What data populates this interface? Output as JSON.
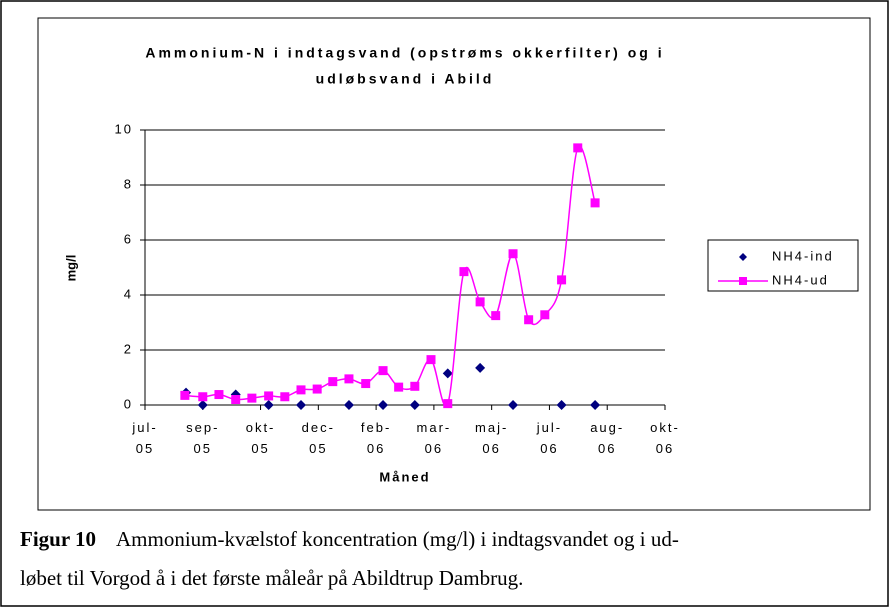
{
  "chart_data": {
    "type": "line",
    "title_lines": [
      "Ammonium-N i indtagsvand (opstrøms okkerfilter) og i",
      "udløbsvand i Abild"
    ],
    "x_label": "Måned",
    "y_label": "mg/l",
    "xlim": [
      0,
      9
    ],
    "xticks": [
      {
        "value": 0,
        "label": "jul-05"
      },
      {
        "value": 1,
        "label": "sep-05"
      },
      {
        "value": 2,
        "label": "okt-05"
      },
      {
        "value": 3,
        "label": "dec-05"
      },
      {
        "value": 4,
        "label": "feb-06"
      },
      {
        "value": 5,
        "label": "mar-06"
      },
      {
        "value": 6,
        "label": "maj-06"
      },
      {
        "value": 7,
        "label": "jul-06"
      },
      {
        "value": 8,
        "label": "aug-06"
      },
      {
        "value": 9,
        "label": "okt-06"
      }
    ],
    "ylim": [
      0,
      10
    ],
    "yticks": [
      0,
      2,
      4,
      6,
      8,
      10
    ],
    "grid": true,
    "legend": "right",
    "series": [
      {
        "name": "NH4-ind",
        "color": "#000080",
        "marker": "diamond",
        "line": false,
        "x": [
          0.71,
          1.0,
          1.57,
          2.14,
          2.7,
          3.53,
          4.12,
          4.67,
          5.24,
          5.8,
          6.37,
          7.21,
          7.79
        ],
        "values": [
          0.45,
          0,
          0.38,
          0,
          0,
          0,
          0,
          0,
          1.15,
          1.35,
          0,
          0,
          0
        ]
      },
      {
        "name": "NH4-ud",
        "color": "#ff00ff",
        "marker": "square",
        "line": true,
        "x": [
          0.69,
          1.0,
          1.28,
          1.57,
          1.85,
          2.14,
          2.42,
          2.7,
          2.98,
          3.25,
          3.53,
          3.82,
          4.12,
          4.39,
          4.67,
          4.95,
          5.24,
          5.52,
          5.8,
          6.07,
          6.37,
          6.64,
          6.92,
          7.21,
          7.49,
          7.79
        ],
        "values": [
          0.35,
          0.3,
          0.38,
          0.2,
          0.25,
          0.33,
          0.3,
          0.55,
          0.58,
          0.85,
          0.95,
          0.78,
          1.25,
          0.65,
          0.68,
          1.65,
          0.05,
          4.85,
          3.75,
          3.25,
          5.5,
          3.1,
          3.28,
          4.55,
          9.35,
          7.35
        ]
      }
    ]
  },
  "caption": {
    "label": "Figur 10",
    "lines": [
      "Ammonium-kvælstof koncentration (mg/l) i indtagsvandet og i ud-",
      "løbet til Vorgod å i det første måleår på Abildtrup Dambrug."
    ]
  }
}
